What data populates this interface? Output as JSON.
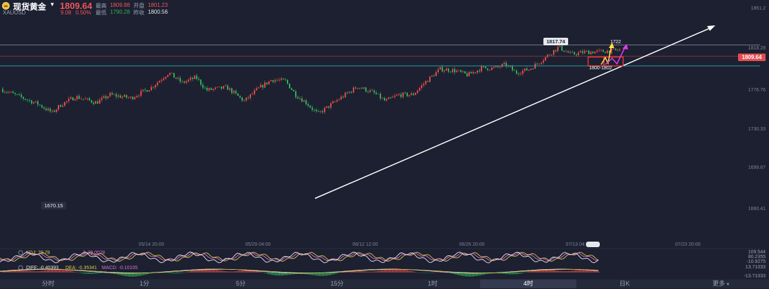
{
  "header": {
    "name": "现货黄金",
    "symbol": "XAUUSD",
    "price": "1809.64",
    "change": "9.08",
    "change_pct": "0.50%",
    "high_label": "最高",
    "high_value": "1809.88",
    "open_label": "开盘",
    "open_value": "1801.23",
    "low_label": "最低",
    "low_value": "1790.28",
    "prev_label": "昨收",
    "prev_value": "1800.56"
  },
  "chart_data": {
    "type": "candlestick",
    "y_ticks": [
      "1861.2",
      "1818.28",
      "1776.76",
      "1730.33",
      "1699.67",
      "1660.41"
    ],
    "x_ticks": [
      "05/14 20:00",
      "05/29 04:00",
      "06/12 12:00",
      "06/26 20:00",
      "07/13 04:00",
      "07/23 20:00"
    ],
    "current_price": "1809.64",
    "annotations": {
      "high": "1817.74",
      "low": "1670.15",
      "target": "1722",
      "zone": "1800-1802"
    },
    "colors": {
      "up": "#e04848",
      "down": "#2fae5b",
      "trendline": "#ffffff",
      "price_tag": "#e44b50"
    }
  },
  "indicators": {
    "kdj_label": "KDJ: 78.78",
    "kdj_j": "J: 79.0028",
    "kdj_scale": [
      "109.544",
      "80.2355",
      "-10.9275"
    ],
    "macd_diff": "DIFF: -0.40393",
    "macd_dea": "DEA: -0.35341",
    "macd_val": "MACD: -0.10105",
    "macd_scale": [
      "13.71033",
      "-13.71033"
    ]
  },
  "tabs": [
    "分时",
    "1分",
    "5分",
    "15分",
    "1时",
    "4时",
    "日K",
    "更多"
  ],
  "active_tab": "4时"
}
